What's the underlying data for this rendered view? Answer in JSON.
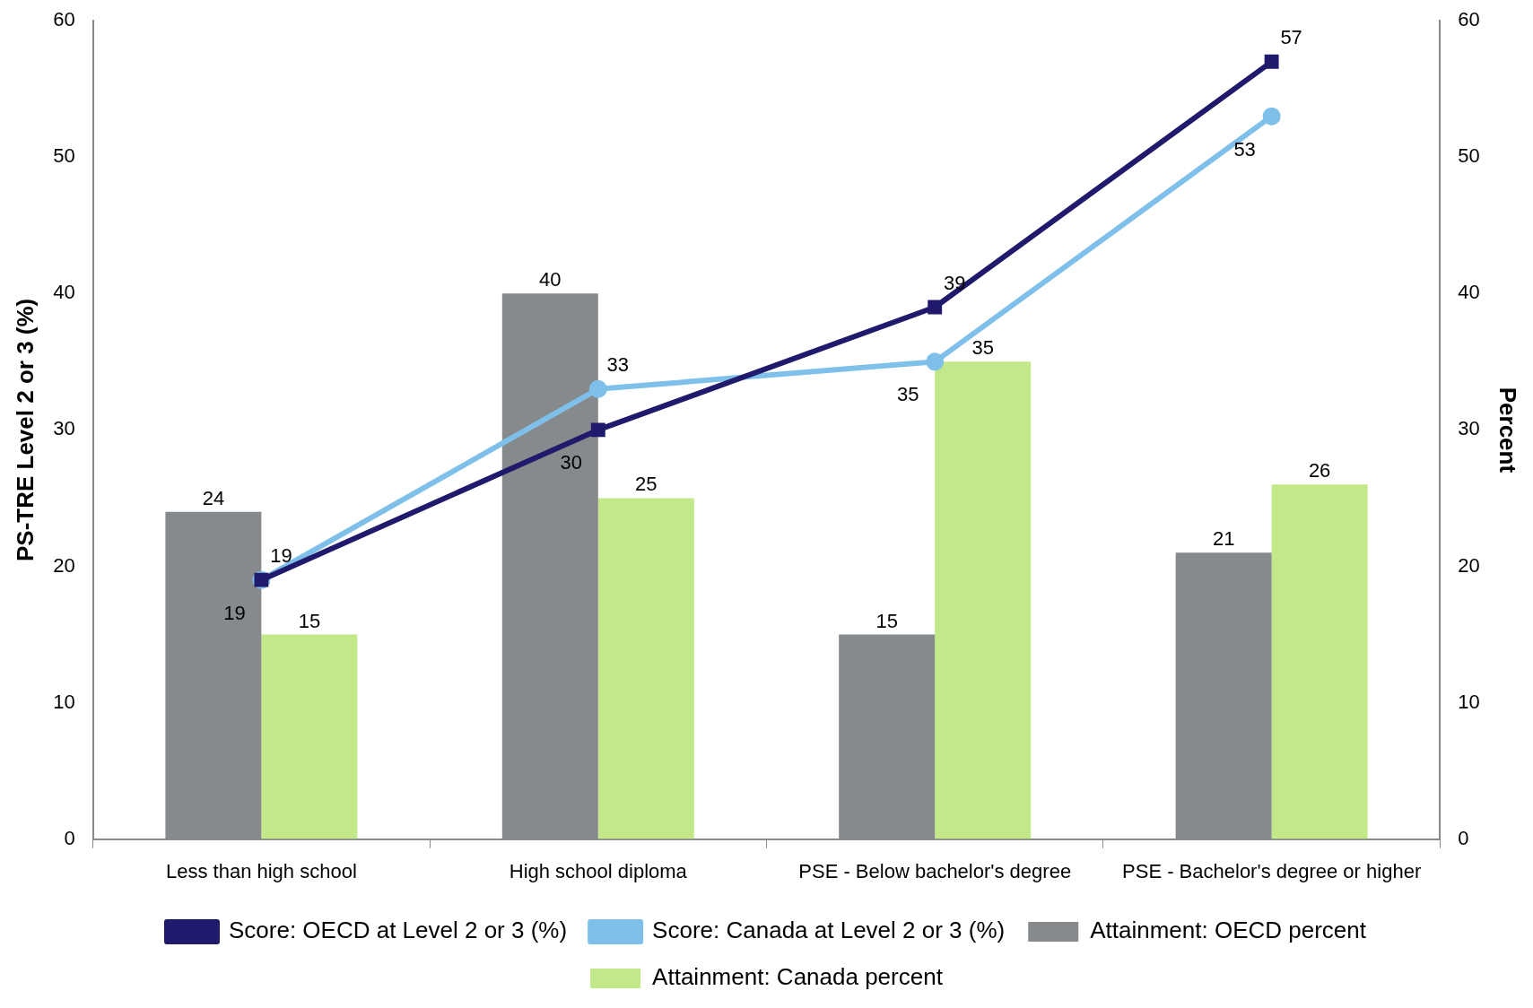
{
  "chart_data": {
    "type": "bar",
    "ylabel": "PS-TRE Level 2 or 3 (%)",
    "y2label": "Percent",
    "categories": [
      "Less than high school",
      "High school diploma",
      "PSE - Below bachelor's degree",
      "PSE - Bachelor's degree or higher"
    ],
    "series": [
      {
        "name": "Attainment: OECD percent",
        "axis": "y2",
        "color": "#868a8d",
        "values": [
          24,
          40,
          15,
          21
        ]
      },
      {
        "name": "Attainment: Canada percent",
        "axis": "y2",
        "color": "#c3e88a",
        "values": [
          15,
          25,
          35,
          26
        ]
      },
      {
        "name": "Score: OECD at Level 2 or 3 (%)",
        "type": "line",
        "color": "#1f1a6b",
        "marker": "square",
        "values": [
          19,
          30,
          39,
          57
        ]
      },
      {
        "name": "Score: Canada at Level 2 or 3 (%)",
        "type": "line",
        "color": "#7fc0ea",
        "marker": "circle",
        "values": [
          19,
          33,
          35,
          53
        ]
      }
    ],
    "ylim": [
      0,
      60
    ],
    "yticks": [
      0,
      10,
      20,
      30,
      40,
      50,
      60
    ],
    "y2lim": [
      0,
      60
    ],
    "y2ticks": [
      0,
      10,
      20,
      30,
      40,
      50,
      60
    ],
    "grid": false,
    "legend": "bottom",
    "data_labels": true
  }
}
